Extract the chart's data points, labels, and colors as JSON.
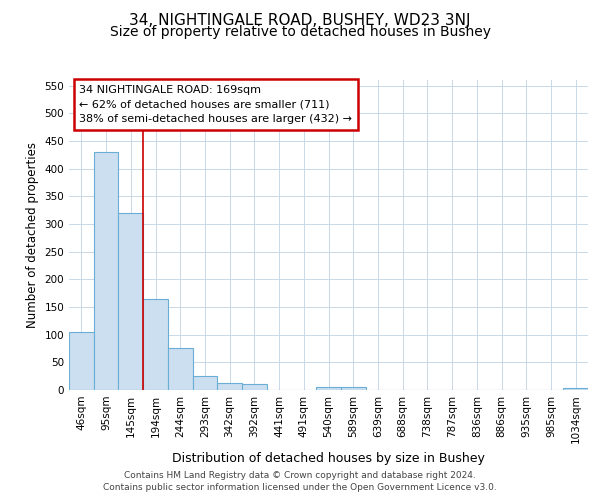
{
  "title1": "34, NIGHTINGALE ROAD, BUSHEY, WD23 3NJ",
  "title2": "Size of property relative to detached houses in Bushey",
  "xlabel": "Distribution of detached houses by size in Bushey",
  "ylabel": "Number of detached properties",
  "categories": [
    "46sqm",
    "95sqm",
    "145sqm",
    "194sqm",
    "244sqm",
    "293sqm",
    "342sqm",
    "392sqm",
    "441sqm",
    "491sqm",
    "540sqm",
    "589sqm",
    "639sqm",
    "688sqm",
    "738sqm",
    "787sqm",
    "836sqm",
    "886sqm",
    "935sqm",
    "985sqm",
    "1034sqm"
  ],
  "values": [
    105,
    430,
    320,
    165,
    75,
    25,
    12,
    10,
    0,
    0,
    5,
    5,
    0,
    0,
    0,
    0,
    0,
    0,
    0,
    0,
    4
  ],
  "bar_color": "#ccdff0",
  "bar_edge_color": "#6aaed6",
  "red_line_x": 2.5,
  "annotation_title": "34 NIGHTINGALE ROAD: 169sqm",
  "annotation_line1": "← 62% of detached houses are smaller (711)",
  "annotation_line2": "38% of semi-detached houses are larger (432) →",
  "annotation_box_color": "#ffffff",
  "annotation_box_edge": "#cc0000",
  "ylim": [
    0,
    560
  ],
  "yticks": [
    0,
    50,
    100,
    150,
    200,
    250,
    300,
    350,
    400,
    450,
    500,
    550
  ],
  "footer1": "Contains HM Land Registry data © Crown copyright and database right 2024.",
  "footer2": "Contains public sector information licensed under the Open Government Licence v3.0.",
  "bg_color": "#ffffff",
  "plot_bg_color": "#ffffff",
  "grid_color": "#c8d8e8",
  "title1_fontsize": 11,
  "title2_fontsize": 10,
  "xlabel_fontsize": 9,
  "ylabel_fontsize": 8.5,
  "tick_fontsize": 7.5,
  "footer_fontsize": 6.5
}
